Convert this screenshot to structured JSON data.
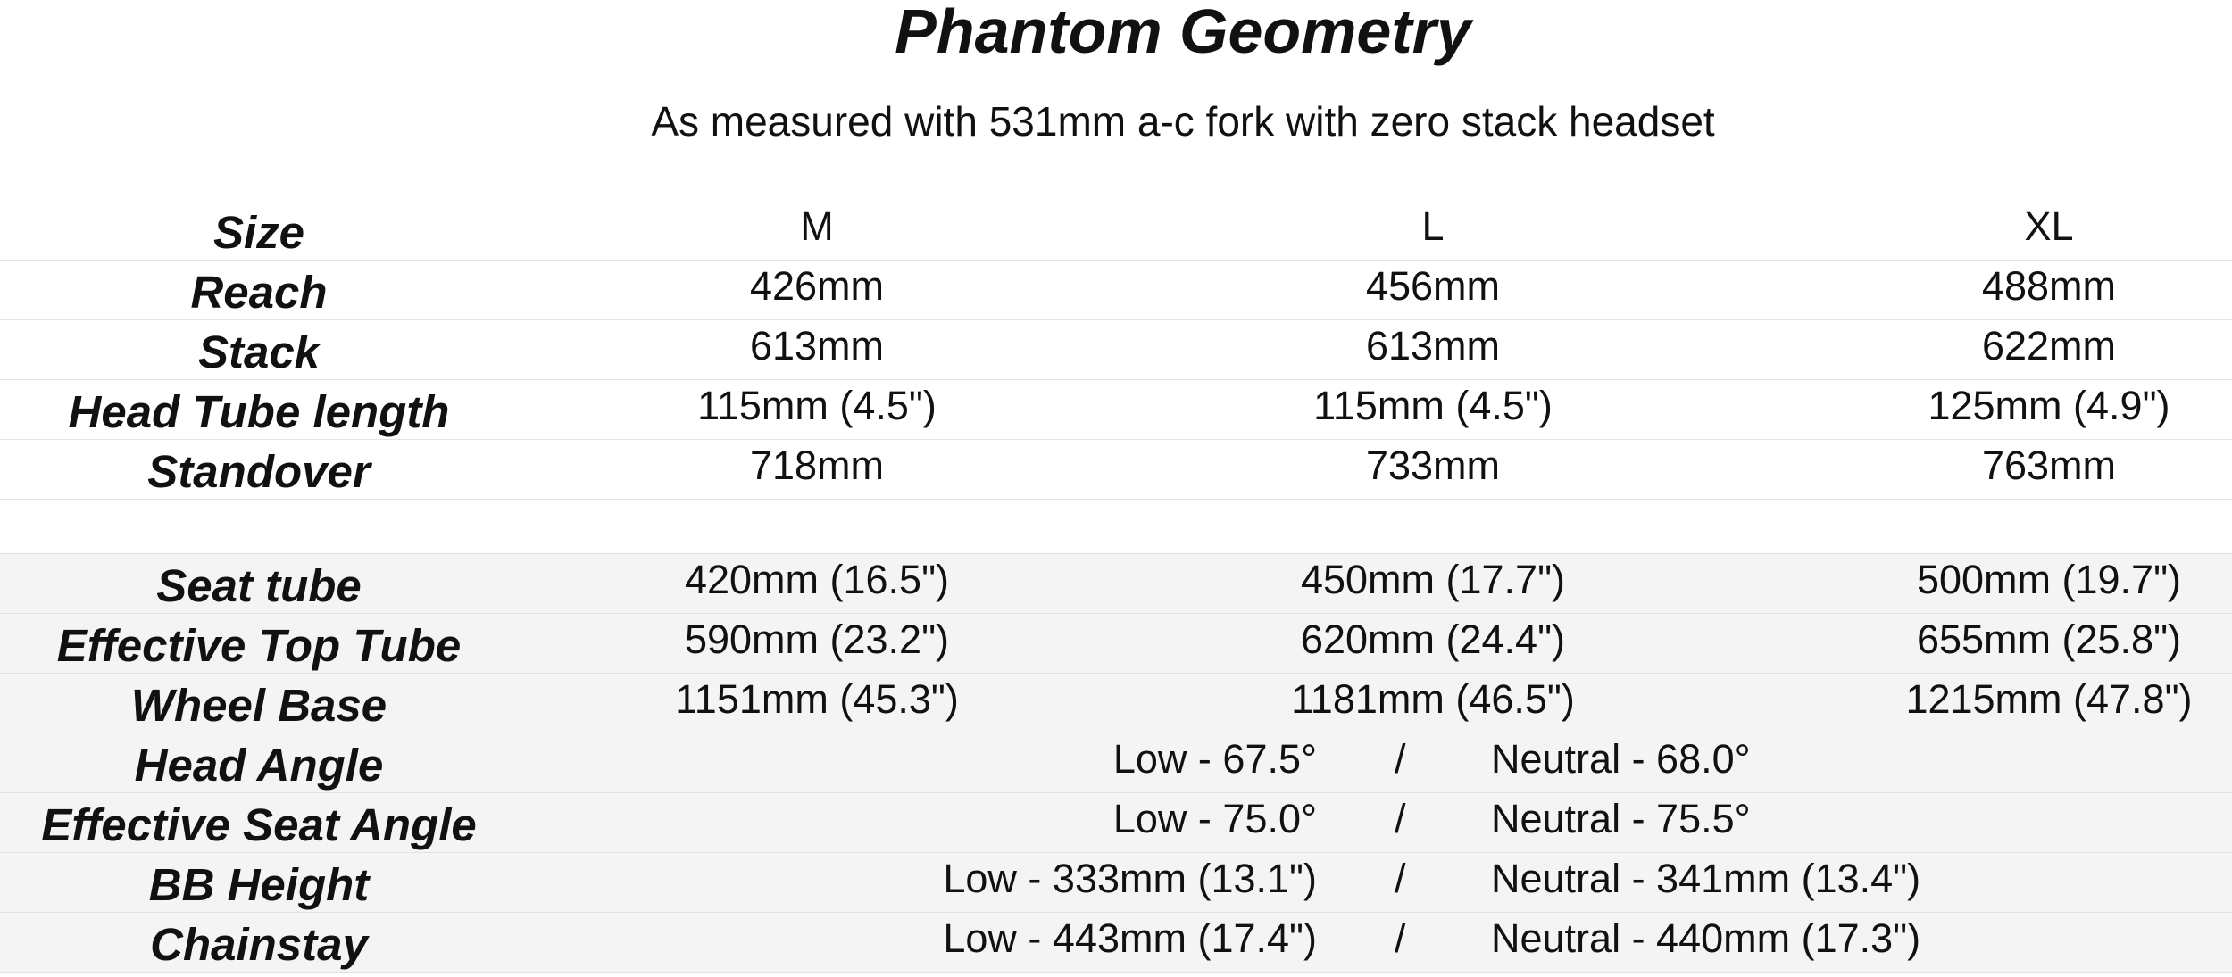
{
  "page": {
    "title": "Phantom Geometry",
    "subtitle": "As measured with 531mm a-c fork with zero stack headset"
  },
  "top_rows": [
    {
      "label": "Size",
      "m": "M",
      "l": "L",
      "xl": "XL"
    },
    {
      "label": "Reach",
      "m": "426mm",
      "l": "456mm",
      "xl": "488mm"
    },
    {
      "label": "Stack",
      "m": "613mm",
      "l": "613mm",
      "xl": "622mm"
    },
    {
      "label": "Head Tube length",
      "m": "115mm (4.5\")",
      "l": "115mm (4.5\")",
      "xl": "125mm (4.9\")"
    },
    {
      "label": "Standover",
      "m": "718mm",
      "l": "733mm",
      "xl": "763mm"
    }
  ],
  "bottom_rows": [
    {
      "label": "Seat tube",
      "m": "420mm   (16.5\")",
      "l": "450mm   (17.7\")",
      "xl": "500mm   (19.7\")"
    },
    {
      "label": "Effective Top Tube",
      "m": "590mm   (23.2\")",
      "l": "620mm  (24.4\")",
      "xl": "655mm  (25.8\")"
    },
    {
      "label": "Wheel Base",
      "m": "1151mm   (45.3\")",
      "l": "1181mm  (46.5\")",
      "xl": "1215mm  (47.8\")"
    }
  ],
  "flip_chip_rows": [
    {
      "label": "Head Angle",
      "low": "Low - 67.5°",
      "sep": "/",
      "neutral": "Neutral - 68.0°"
    },
    {
      "label": "Effective Seat Angle",
      "low": "Low - 75.0°",
      "sep": "/",
      "neutral": "Neutral - 75.5°"
    },
    {
      "label": "BB Height",
      "low": "Low - 333mm  (13.1\")",
      "sep": "/",
      "neutral": "Neutral - 341mm  (13.4\")"
    },
    {
      "label": "Chainstay",
      "low": "Low - 443mm  (17.4\")",
      "sep": "/",
      "neutral": "Neutral - 440mm  (17.3\")"
    }
  ]
}
